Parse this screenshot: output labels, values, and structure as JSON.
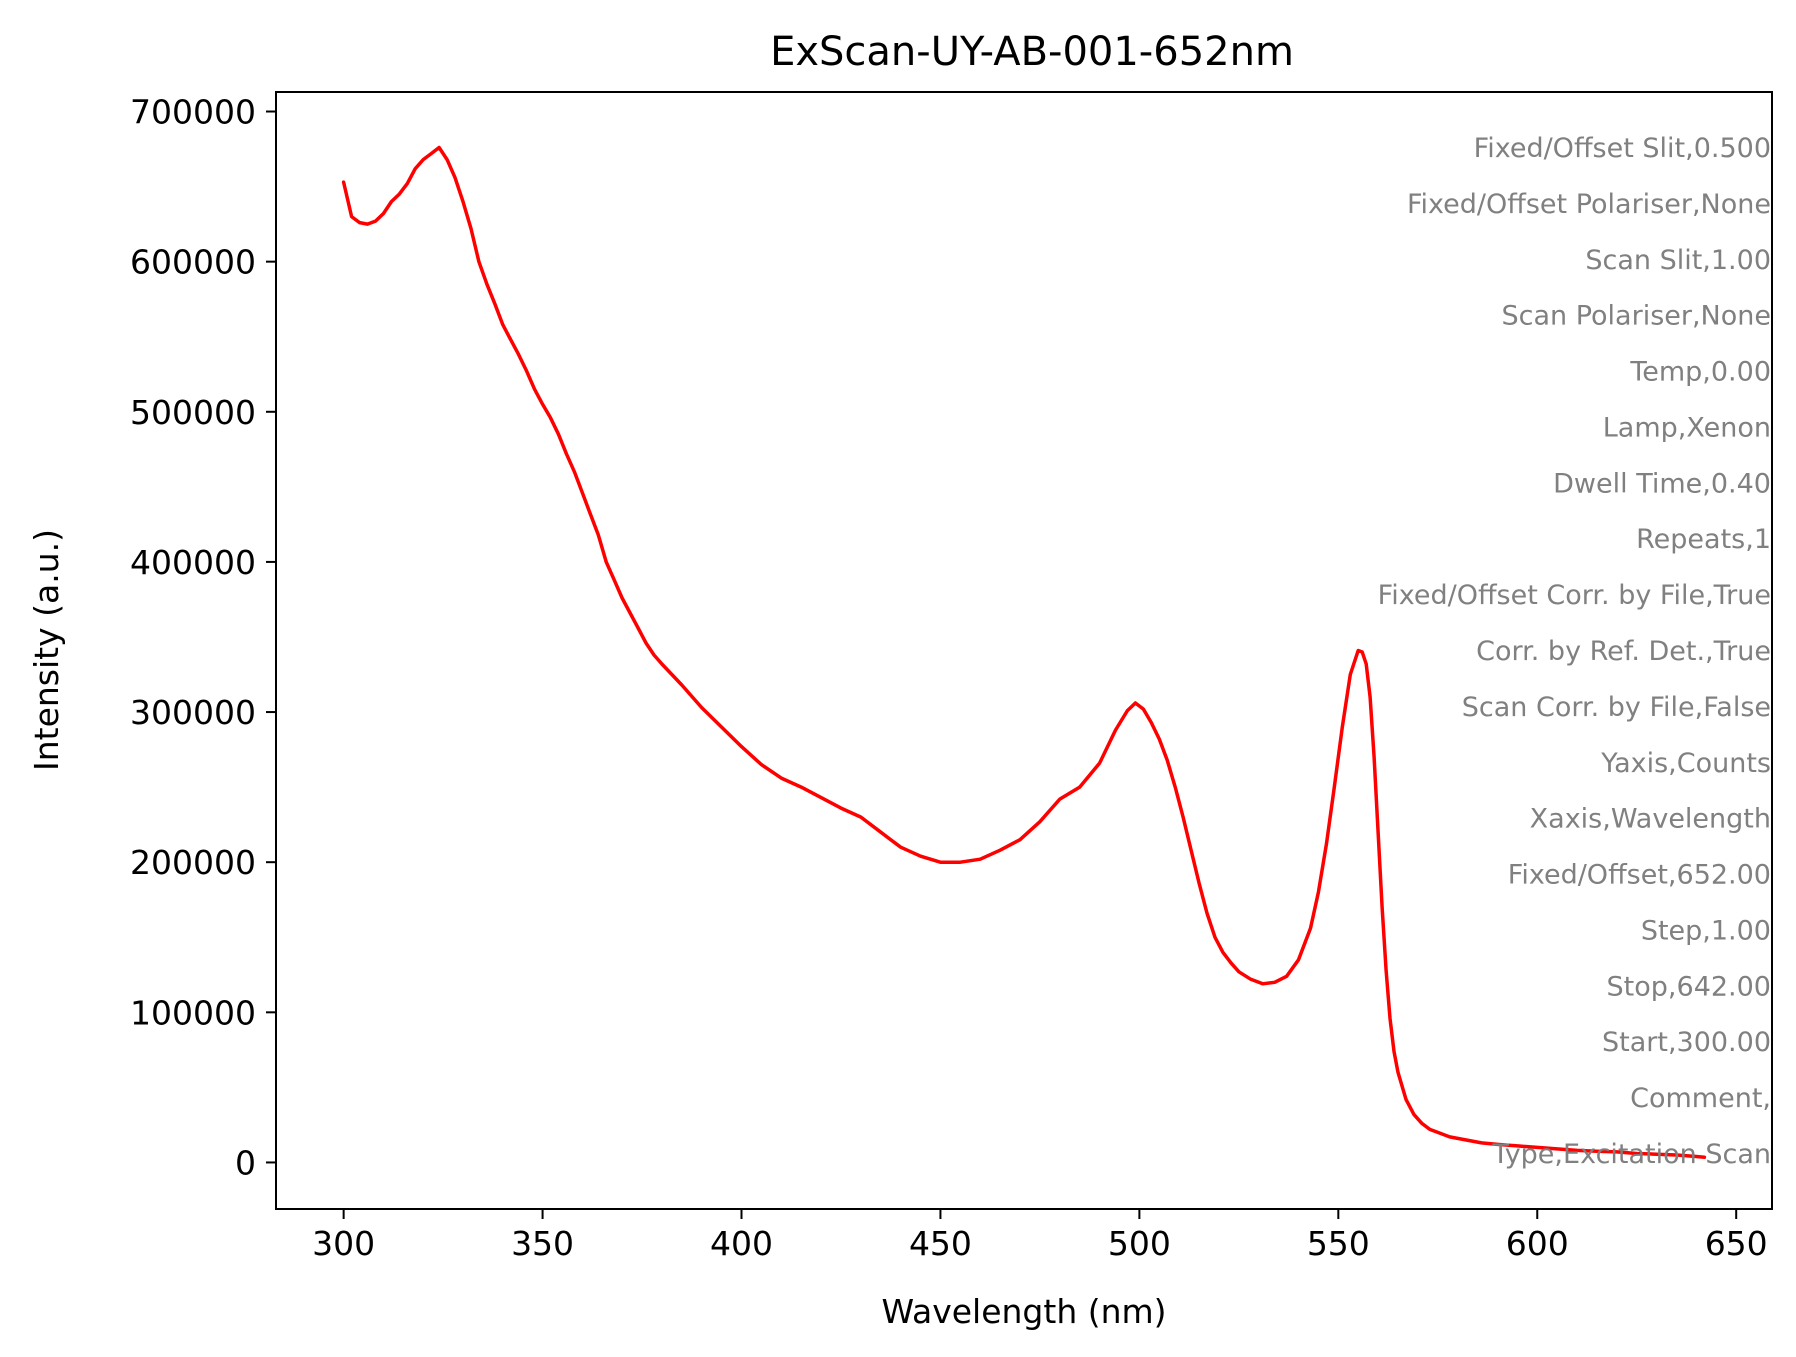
{
  "chart_data": {
    "type": "line",
    "title": "ExScan-UY-AB-001-652nm",
    "xlabel": "Wavelength (nm)",
    "ylabel": "Intensity (a.u.)",
    "xlim": [
      283,
      659
    ],
    "ylim": [
      -31000,
      713000
    ],
    "xticks": [
      300,
      350,
      400,
      450,
      500,
      550,
      600,
      650
    ],
    "yticks": [
      0,
      100000,
      200000,
      300000,
      400000,
      500000,
      600000,
      700000
    ],
    "grid": false,
    "series": [
      {
        "color": "#ff0000",
        "x": [
          300,
          302,
          304,
          306,
          308,
          310,
          312,
          314,
          316,
          318,
          320,
          322,
          324,
          326,
          328,
          330,
          332,
          334,
          336,
          338,
          340,
          342,
          344,
          346,
          348,
          350,
          352,
          354,
          356,
          358,
          360,
          362,
          364,
          366,
          368,
          370,
          372,
          374,
          376,
          378,
          380,
          385,
          390,
          395,
          400,
          405,
          410,
          415,
          420,
          425,
          430,
          435,
          440,
          445,
          450,
          455,
          460,
          465,
          470,
          475,
          480,
          485,
          490,
          494,
          497,
          499,
          501,
          503,
          505,
          507,
          509,
          511,
          513,
          515,
          517,
          519,
          521,
          523,
          525,
          528,
          531,
          534,
          537,
          540,
          543,
          545,
          547,
          549,
          551,
          553,
          555,
          556,
          557,
          558,
          559,
          560,
          561,
          562,
          563,
          564,
          565,
          567,
          569,
          571,
          573,
          575,
          578,
          582,
          586,
          590,
          595,
          600,
          605,
          610,
          615,
          620,
          625,
          630,
          635,
          640,
          642
        ],
        "y": [
          653000,
          630000,
          626000,
          625000,
          627000,
          632000,
          640000,
          645000,
          652000,
          662000,
          668000,
          672000,
          676000,
          668000,
          656000,
          640000,
          622000,
          600000,
          585000,
          572000,
          558000,
          548000,
          538000,
          527000,
          515000,
          505000,
          496000,
          485000,
          472000,
          460000,
          446000,
          432000,
          418000,
          400000,
          388000,
          376000,
          366000,
          356000,
          346000,
          338000,
          332000,
          318000,
          303000,
          290000,
          277000,
          265000,
          256000,
          250000,
          243000,
          236000,
          230000,
          220000,
          210000,
          204000,
          200000,
          200000,
          202000,
          208000,
          215000,
          227000,
          242000,
          250000,
          266000,
          288000,
          301000,
          306000,
          302000,
          293000,
          282000,
          268000,
          250000,
          230000,
          208000,
          186000,
          166000,
          150000,
          140000,
          133000,
          127000,
          122000,
          119000,
          120000,
          124000,
          135000,
          156000,
          180000,
          212000,
          250000,
          290000,
          325000,
          341000,
          340000,
          332000,
          310000,
          270000,
          220000,
          170000,
          128000,
          96000,
          74000,
          60000,
          42000,
          32000,
          26000,
          22000,
          20000,
          17000,
          15000,
          13000,
          12000,
          11000,
          10000,
          9000,
          8000,
          7500,
          7000,
          6000,
          5500,
          5000,
          4000,
          3500
        ]
      }
    ]
  },
  "annotations": [
    "Fixed/Offset Slit,0.500",
    "Fixed/Offset Polariser,None",
    "Scan Slit,1.00",
    "Scan Polariser,None",
    "Temp,0.00",
    "Lamp,Xenon",
    "Dwell Time,0.40",
    "Repeats,1",
    "Fixed/Offset Corr. by File,True",
    "Corr. by Ref. Det.,True",
    "Scan Corr. by File,False",
    "Yaxis,Counts",
    "Xaxis,Wavelength",
    "Fixed/Offset,652.00",
    "Step,1.00",
    "Stop,642.00",
    "Start,300.00",
    "Comment,",
    "Type,Excitation Scan"
  ]
}
